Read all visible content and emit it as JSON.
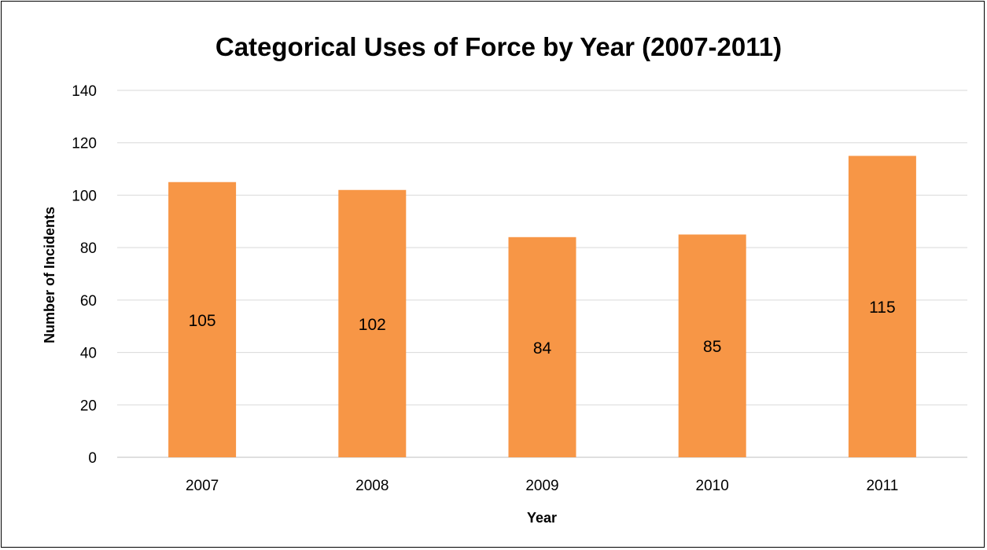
{
  "chart_data": {
    "type": "bar",
    "title": "Categorical Uses of Force by Year (2007-2011)",
    "xlabel": "Year",
    "ylabel": "Number of Incidents",
    "categories": [
      "2007",
      "2008",
      "2009",
      "2010",
      "2011"
    ],
    "values": [
      105,
      102,
      84,
      85,
      115
    ],
    "data_labels": [
      "105",
      "102",
      "84",
      "85",
      "115"
    ],
    "ylim": [
      0,
      140
    ],
    "yticks": [
      0,
      20,
      40,
      60,
      80,
      100,
      120,
      140
    ],
    "ytick_labels": [
      "0",
      "20",
      "40",
      "60",
      "80",
      "100",
      "120",
      "140"
    ],
    "grid": true,
    "legend": "none",
    "bar_color": "#f79646",
    "data_label_position": "center"
  }
}
